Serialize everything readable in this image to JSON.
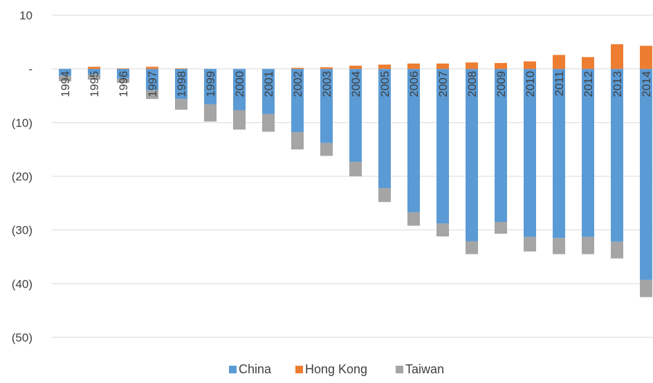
{
  "chart_data": {
    "type": "bar",
    "stacked": true,
    "diverging": true,
    "categories": [
      "1994",
      "1995",
      "1996",
      "1997",
      "1998",
      "1999",
      "2000",
      "2001",
      "2002",
      "2003",
      "2004",
      "2005",
      "2006",
      "2007",
      "2008",
      "2009",
      "2010",
      "2011",
      "2012",
      "2013",
      "2014"
    ],
    "series": [
      {
        "name": "China",
        "color": "#5b9bd5",
        "values": [
          -1.3,
          -1.0,
          -1.8,
          -4.0,
          -5.6,
          -6.6,
          -7.7,
          -8.4,
          -11.8,
          -13.8,
          -17.3,
          -22.2,
          -26.7,
          -28.8,
          -32.1,
          -28.5,
          -31.3,
          -31.5,
          -31.3,
          -32.2,
          -39.3
        ]
      },
      {
        "name": "Hong Kong",
        "color": "#ed7d31",
        "values": [
          0.0,
          0.4,
          0.1,
          0.4,
          0.1,
          0.0,
          0.0,
          0.0,
          0.2,
          0.3,
          0.6,
          0.8,
          1.0,
          1.0,
          1.2,
          1.1,
          1.4,
          2.6,
          2.2,
          4.6,
          4.3
        ]
      },
      {
        "name": "Taiwan",
        "color": "#a5a5a5",
        "values": [
          -1.0,
          -1.0,
          -0.8,
          -1.6,
          -2.0,
          -3.2,
          -3.6,
          -3.3,
          -3.2,
          -2.4,
          -2.7,
          -2.6,
          -2.5,
          -2.4,
          -2.4,
          -2.2,
          -2.7,
          -3.0,
          -3.2,
          -3.1,
          -3.2
        ]
      }
    ],
    "ylim": [
      -50,
      10
    ],
    "yticks": [
      10,
      0,
      -10,
      -20,
      -30,
      -40,
      -50
    ],
    "ytick_labels": [
      "10",
      "-",
      "(10)",
      "(20)",
      "(30)",
      "(40)",
      "(50)"
    ],
    "grid": true,
    "legend_position": "bottom"
  }
}
